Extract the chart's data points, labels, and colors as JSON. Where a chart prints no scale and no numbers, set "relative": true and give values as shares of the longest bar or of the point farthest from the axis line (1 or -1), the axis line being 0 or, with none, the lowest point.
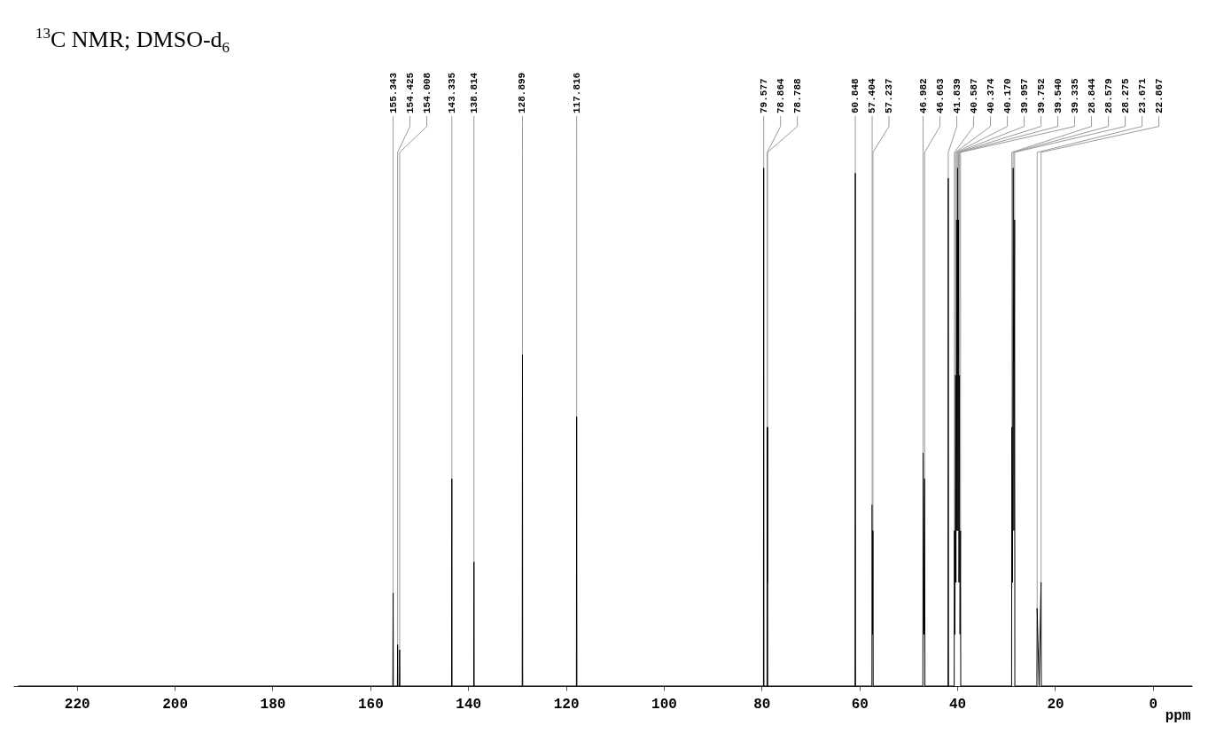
{
  "chart_data": {
    "type": "line",
    "relative": true,
    "title": "$^{13}$C NMR; DMSO-d$_{6}$",
    "xlabel": "ppm",
    "xlim": [
      233,
      -8
    ],
    "xticks": [
      220,
      200,
      180,
      160,
      140,
      120,
      100,
      80,
      60,
      40,
      20,
      0
    ],
    "grid": false,
    "tick_labels": "x",
    "x": [
      232,
      155.4,
      155.343,
      155.3,
      154.47,
      154.425,
      154.38,
      154.05,
      154.008,
      153.97,
      143.4,
      143.335,
      143.3,
      138.87,
      138.814,
      138.77,
      128.95,
      128.899,
      128.85,
      117.87,
      117.816,
      117.77,
      79.63,
      79.577,
      79.53,
      78.9,
      78.864,
      78.826,
      78.788,
      78.75,
      60.9,
      60.848,
      60.8,
      57.45,
      57.404,
      57.32,
      57.237,
      57.19,
      47.03,
      46.982,
      46.82,
      46.663,
      46.61,
      41.89,
      41.839,
      41.79,
      40.63,
      40.587,
      40.48,
      40.374,
      40.27,
      40.17,
      40.06,
      39.957,
      39.85,
      39.752,
      39.65,
      39.54,
      39.44,
      39.335,
      39.29,
      28.89,
      28.844,
      28.71,
      28.579,
      28.43,
      28.275,
      28.23,
      23.72,
      23.671,
      23.27,
      22.867,
      22.82,
      -8
    ],
    "series": [
      {
        "color": "#000000",
        "values": [
          0,
          0,
          0.18,
          0,
          0,
          0.08,
          0,
          0,
          0.07,
          0,
          0,
          0.4,
          0,
          0,
          0.24,
          0,
          0,
          0.64,
          0,
          0,
          0.52,
          0,
          0,
          1,
          0,
          0,
          0.5,
          0.2,
          0.5,
          0,
          0,
          0.99,
          0,
          0,
          0.35,
          0.1,
          0.3,
          0,
          0,
          0.45,
          0.1,
          0.4,
          0,
          0,
          0.98,
          0,
          0,
          0.3,
          0.1,
          0.6,
          0.2,
          0.9,
          0.3,
          1,
          0.3,
          0.9,
          0.2,
          0.6,
          0.1,
          0.3,
          0,
          0,
          0.5,
          0.2,
          1,
          0.3,
          0.9,
          0,
          0,
          0.15,
          0,
          0.2,
          0,
          0
        ]
      }
    ],
    "annotations": [
      {
        "text": "155.343",
        "x": 155.343,
        "y": 0.18
      },
      {
        "text": "154.425",
        "x": 154.425,
        "y": 0.08
      },
      {
        "text": "154.008",
        "x": 154.008,
        "y": 0.07
      },
      {
        "text": "143.335",
        "x": 143.335,
        "y": 0.4
      },
      {
        "text": "138.814",
        "x": 138.814,
        "y": 0.24
      },
      {
        "text": "128.899",
        "x": 128.899,
        "y": 0.64
      },
      {
        "text": "117.816",
        "x": 117.816,
        "y": 0.52
      },
      {
        "text": "79.577",
        "x": 79.577,
        "y": 1
      },
      {
        "text": "78.864",
        "x": 78.864,
        "y": 0.5
      },
      {
        "text": "78.788",
        "x": 78.788,
        "y": 0.5
      },
      {
        "text": "60.848",
        "x": 60.848,
        "y": 0.99
      },
      {
        "text": "57.404",
        "x": 57.404,
        "y": 0.35
      },
      {
        "text": "57.237",
        "x": 57.237,
        "y": 0.3
      },
      {
        "text": "46.982",
        "x": 46.982,
        "y": 0.45
      },
      {
        "text": "46.663",
        "x": 46.663,
        "y": 0.4
      },
      {
        "text": "41.839",
        "x": 41.839,
        "y": 0.98
      },
      {
        "text": "40.587",
        "x": 40.587,
        "y": 0.3
      },
      {
        "text": "40.374",
        "x": 40.374,
        "y": 0.6
      },
      {
        "text": "40.170",
        "x": 40.17,
        "y": 0.9
      },
      {
        "text": "39.957",
        "x": 39.957,
        "y": 1
      },
      {
        "text": "39.752",
        "x": 39.752,
        "y": 0.9
      },
      {
        "text": "39.540",
        "x": 39.54,
        "y": 0.6
      },
      {
        "text": "39.335",
        "x": 39.335,
        "y": 0.3
      },
      {
        "text": "28.844",
        "x": 28.844,
        "y": 0.5
      },
      {
        "text": "28.579",
        "x": 28.579,
        "y": 1
      },
      {
        "text": "28.275",
        "x": 28.275,
        "y": 0.9
      },
      {
        "text": "23.671",
        "x": 23.671,
        "y": 0.15
      },
      {
        "text": "22.867",
        "x": 22.867,
        "y": 0.2
      }
    ]
  }
}
